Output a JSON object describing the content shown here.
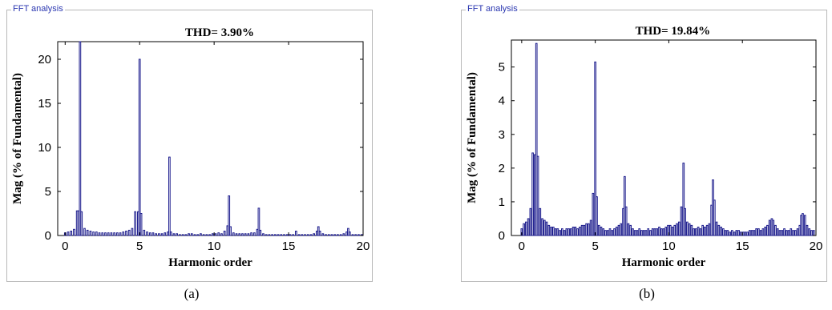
{
  "panels": [
    {
      "frame_label": "FFT analysis",
      "caption": "(a)"
    },
    {
      "frame_label": "FFT analysis",
      "caption": "(b)"
    }
  ],
  "colors": {
    "bar": "#1a1a8c",
    "frame": "#b8b8b8",
    "frame_label": "#2a36b0"
  },
  "chart_data": [
    {
      "type": "bar",
      "title": "THD= 3.90%",
      "xlabel": "Harmonic order",
      "ylabel": "Mag (% of Fundamental)",
      "xlim": [
        -0.5,
        20
      ],
      "ylim": [
        0,
        22
      ],
      "xticks": [
        0,
        5,
        10,
        15,
        20
      ],
      "yticks": [
        0,
        5,
        10,
        15,
        20
      ],
      "grid": false,
      "x": [
        0,
        0.2,
        0.4,
        0.6,
        0.8,
        0.9,
        1.0,
        1.1,
        1.3,
        1.5,
        1.7,
        1.9,
        2.1,
        2.3,
        2.5,
        2.7,
        2.9,
        3.1,
        3.3,
        3.5,
        3.7,
        3.9,
        4.1,
        4.3,
        4.5,
        4.7,
        4.9,
        5.0,
        5.1,
        5.3,
        5.5,
        5.7,
        5.9,
        6.1,
        6.3,
        6.5,
        6.7,
        6.9,
        7.0,
        7.1,
        7.3,
        7.5,
        7.7,
        7.9,
        8.1,
        8.3,
        8.5,
        8.7,
        8.9,
        9.1,
        9.3,
        9.5,
        9.7,
        9.9,
        10.1,
        10.3,
        10.5,
        10.7,
        10.9,
        11.0,
        11.1,
        11.3,
        11.5,
        11.7,
        11.9,
        12.1,
        12.3,
        12.5,
        12.7,
        12.9,
        13.0,
        13.1,
        13.3,
        13.5,
        13.7,
        13.9,
        14.1,
        14.3,
        14.5,
        14.7,
        14.9,
        15.1,
        15.3,
        15.5,
        15.7,
        15.9,
        16.1,
        16.3,
        16.5,
        16.7,
        16.9,
        17.0,
        17.1,
        17.3,
        17.5,
        17.7,
        17.9,
        18.1,
        18.3,
        18.5,
        18.7,
        18.9,
        19.0,
        19.1,
        19.3,
        19.5,
        19.7,
        19.9
      ],
      "values": [
        0.3,
        0.4,
        0.5,
        0.7,
        2.8,
        2.8,
        22.0,
        2.7,
        0.8,
        0.6,
        0.5,
        0.4,
        0.4,
        0.3,
        0.3,
        0.3,
        0.3,
        0.3,
        0.3,
        0.3,
        0.3,
        0.4,
        0.5,
        0.6,
        0.8,
        2.7,
        2.7,
        20.0,
        2.5,
        0.6,
        0.4,
        0.3,
        0.3,
        0.2,
        0.2,
        0.2,
        0.3,
        0.4,
        8.9,
        0.4,
        0.2,
        0.2,
        0.1,
        0.1,
        0.1,
        0.2,
        0.2,
        0.1,
        0.1,
        0.2,
        0.1,
        0.1,
        0.1,
        0.2,
        0.2,
        0.3,
        0.2,
        0.5,
        1.1,
        4.5,
        1.0,
        0.3,
        0.2,
        0.2,
        0.2,
        0.2,
        0.2,
        0.3,
        0.3,
        0.7,
        3.1,
        0.6,
        0.2,
        0.1,
        0.1,
        0.1,
        0.1,
        0.1,
        0.1,
        0.1,
        0.1,
        0.1,
        0.1,
        0.5,
        0.1,
        0.1,
        0.1,
        0.1,
        0.1,
        0.2,
        0.5,
        1.0,
        0.5,
        0.2,
        0.1,
        0.1,
        0.1,
        0.1,
        0.1,
        0.1,
        0.2,
        0.4,
        0.8,
        0.4,
        0.1,
        0.1,
        0.1,
        0.1
      ]
    },
    {
      "type": "bar",
      "title": "THD= 19.84%",
      "xlabel": "Harmonic order",
      "ylabel": "Mag (% of Fundamental)",
      "xlim": [
        -0.7,
        20
      ],
      "ylim": [
        0,
        5.8
      ],
      "xticks": [
        0,
        5,
        10,
        15,
        20
      ],
      "yticks": [
        0,
        1,
        2,
        3,
        4,
        5
      ],
      "grid": false,
      "x": [
        0,
        0.15,
        0.3,
        0.45,
        0.6,
        0.75,
        0.9,
        1.0,
        1.1,
        1.25,
        1.4,
        1.55,
        1.7,
        1.85,
        2.0,
        2.15,
        2.3,
        2.45,
        2.6,
        2.75,
        2.9,
        3.05,
        3.2,
        3.35,
        3.5,
        3.65,
        3.8,
        3.95,
        4.1,
        4.25,
        4.4,
        4.55,
        4.7,
        4.85,
        5.0,
        5.1,
        5.25,
        5.4,
        5.55,
        5.7,
        5.85,
        6.0,
        6.15,
        6.3,
        6.45,
        6.6,
        6.75,
        6.9,
        7.0,
        7.1,
        7.25,
        7.4,
        7.55,
        7.7,
        7.85,
        8.0,
        8.15,
        8.3,
        8.45,
        8.6,
        8.75,
        8.9,
        9.05,
        9.2,
        9.35,
        9.5,
        9.65,
        9.8,
        9.95,
        10.1,
        10.25,
        10.4,
        10.55,
        10.7,
        10.85,
        11.0,
        11.1,
        11.25,
        11.4,
        11.55,
        11.7,
        11.85,
        12.0,
        12.15,
        12.3,
        12.45,
        12.6,
        12.75,
        12.9,
        13.0,
        13.1,
        13.25,
        13.4,
        13.55,
        13.7,
        13.85,
        14.0,
        14.15,
        14.3,
        14.45,
        14.6,
        14.75,
        14.9,
        15.05,
        15.2,
        15.35,
        15.5,
        15.65,
        15.8,
        15.95,
        16.1,
        16.25,
        16.4,
        16.55,
        16.7,
        16.85,
        17.0,
        17.1,
        17.25,
        17.4,
        17.55,
        17.7,
        17.85,
        18.0,
        18.15,
        18.3,
        18.45,
        18.6,
        18.75,
        18.9,
        19.0,
        19.1,
        19.25,
        19.4,
        19.55,
        19.7,
        19.85
      ],
      "values": [
        0.2,
        0.35,
        0.4,
        0.5,
        0.8,
        2.45,
        2.4,
        5.7,
        2.35,
        0.8,
        0.5,
        0.45,
        0.4,
        0.3,
        0.25,
        0.25,
        0.2,
        0.2,
        0.15,
        0.2,
        0.15,
        0.2,
        0.2,
        0.2,
        0.25,
        0.25,
        0.2,
        0.25,
        0.3,
        0.3,
        0.35,
        0.35,
        0.45,
        1.25,
        5.15,
        1.15,
        0.3,
        0.25,
        0.2,
        0.15,
        0.15,
        0.2,
        0.15,
        0.2,
        0.25,
        0.3,
        0.35,
        0.8,
        1.75,
        0.85,
        0.35,
        0.3,
        0.2,
        0.15,
        0.15,
        0.2,
        0.15,
        0.15,
        0.15,
        0.2,
        0.15,
        0.2,
        0.2,
        0.2,
        0.25,
        0.2,
        0.2,
        0.25,
        0.3,
        0.3,
        0.25,
        0.3,
        0.35,
        0.4,
        0.85,
        2.15,
        0.8,
        0.4,
        0.35,
        0.3,
        0.2,
        0.2,
        0.25,
        0.2,
        0.3,
        0.25,
        0.3,
        0.35,
        0.9,
        1.65,
        1.05,
        0.4,
        0.3,
        0.25,
        0.2,
        0.15,
        0.15,
        0.1,
        0.15,
        0.1,
        0.15,
        0.15,
        0.1,
        0.1,
        0.1,
        0.1,
        0.15,
        0.15,
        0.15,
        0.2,
        0.2,
        0.15,
        0.2,
        0.25,
        0.3,
        0.45,
        0.5,
        0.45,
        0.3,
        0.2,
        0.15,
        0.15,
        0.2,
        0.15,
        0.15,
        0.2,
        0.15,
        0.15,
        0.2,
        0.3,
        0.6,
        0.65,
        0.6,
        0.3,
        0.2,
        0.15,
        0.15
      ]
    }
  ]
}
